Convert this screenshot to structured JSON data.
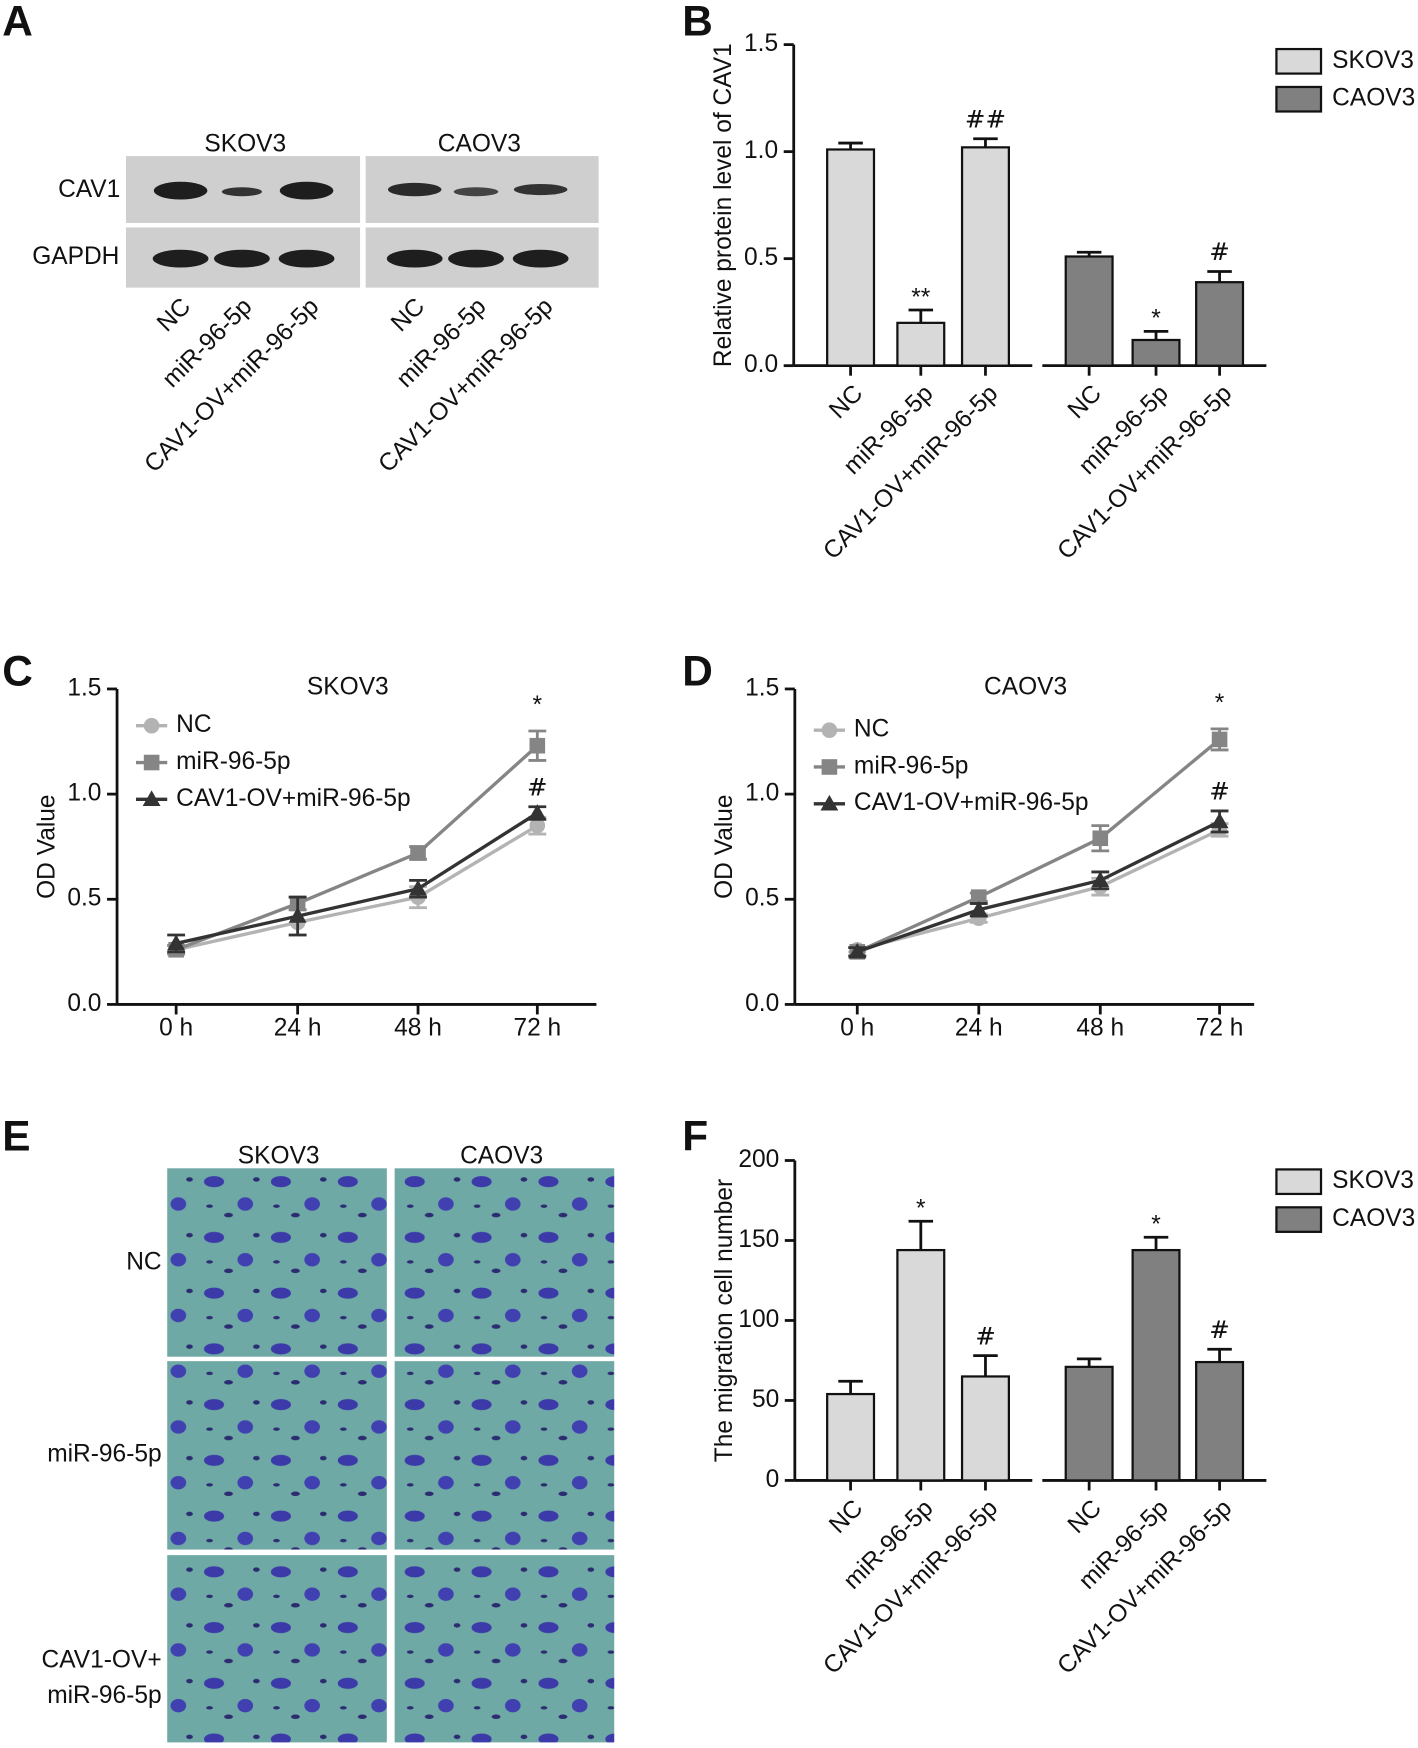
{
  "blot": {
    "panel": "A",
    "cell_lines": [
      "SKOV3",
      "CAOV3"
    ],
    "proteins": [
      "CAV1",
      "GAPDH"
    ],
    "lanes": [
      "NC",
      "miR-96-5p",
      "CAV1-OV+miR-96-5p"
    ]
  },
  "migration_images": {
    "panel": "E",
    "cell_lines": [
      "SKOV3",
      "CAOV3"
    ],
    "rows": [
      [
        "NC"
      ],
      [
        "miR-96-5p"
      ],
      [
        "CAV1-OV+",
        "miR-96-5p"
      ]
    ]
  },
  "chart_data": [
    {
      "type": "bar",
      "panel": "B",
      "ylabel": "Relative protein level of CAV1",
      "categories": [
        "NC",
        "miR-96-5p",
        "CAV1-OV+miR-96-5p"
      ],
      "ylim": [
        0,
        1.5
      ],
      "yticks": [
        {
          "value": 0,
          "label": "0.0"
        },
        0.5,
        {
          "value": 1,
          "label": "1.0"
        },
        1.5
      ],
      "legend": "right",
      "series": [
        {
          "name": "SKOV3",
          "color": "#d9d9d9",
          "values": [
            1.01,
            0.2,
            1.02
          ],
          "errors": [
            0.03,
            0.06,
            0.04
          ],
          "annotations": [
            null,
            "**",
            "##"
          ]
        },
        {
          "name": "CAOV3",
          "color": "#808080",
          "values": [
            0.51,
            0.12,
            0.39
          ],
          "errors": [
            0.02,
            0.04,
            0.05
          ],
          "annotations": [
            null,
            "*",
            "#"
          ]
        }
      ]
    },
    {
      "type": "line",
      "panel": "C",
      "title": "SKOV3",
      "ylabel": "OD Value",
      "categories": [
        "0 h",
        "24 h",
        "48 h",
        "72 h"
      ],
      "ylim": [
        0,
        1.5
      ],
      "yticks": [
        {
          "value": 0,
          "label": "0.0"
        },
        0.5,
        {
          "value": 1,
          "label": "1.0"
        },
        1.5
      ],
      "legend": "top-left",
      "series": [
        {
          "name": "NC",
          "color": "#b3b3b3",
          "marker": "circle",
          "values": [
            0.26,
            0.39,
            0.51,
            0.85
          ],
          "errors": [
            0.02,
            0.06,
            0.05,
            0.04
          ],
          "annotations": [
            null,
            null,
            null,
            null
          ]
        },
        {
          "name": "miR-96-5p",
          "color": "#858585",
          "marker": "square",
          "values": [
            0.26,
            0.48,
            0.72,
            1.23
          ],
          "errors": [
            0.02,
            0.03,
            0.03,
            0.07
          ],
          "annotations": [
            null,
            null,
            null,
            "*"
          ]
        },
        {
          "name": "CAV1-OV+miR-96-5p",
          "color": "#333333",
          "marker": "triangle",
          "values": [
            0.29,
            0.42,
            0.55,
            0.91
          ],
          "errors": [
            0.04,
            0.09,
            0.04,
            0.03
          ],
          "annotations": [
            null,
            null,
            null,
            "#"
          ]
        }
      ]
    },
    {
      "type": "line",
      "panel": "D",
      "title": "CAOV3",
      "ylabel": "OD Value",
      "categories": [
        "0 h",
        "24 h",
        "48 h",
        "72 h"
      ],
      "ylim": [
        0,
        1.5
      ],
      "yticks": [
        {
          "value": 0,
          "label": "0.0"
        },
        0.5,
        {
          "value": 1,
          "label": "1.0"
        },
        1.5
      ],
      "legend": "top-left",
      "series": [
        {
          "name": "NC",
          "color": "#b3b3b3",
          "marker": "circle",
          "values": [
            0.26,
            0.41,
            0.56,
            0.83
          ],
          "errors": [
            0.01,
            0.02,
            0.04,
            0.03
          ],
          "annotations": [
            null,
            null,
            null,
            null
          ]
        },
        {
          "name": "miR-96-5p",
          "color": "#858585",
          "marker": "square",
          "values": [
            0.25,
            0.51,
            0.79,
            1.26
          ],
          "errors": [
            0.02,
            0.02,
            0.06,
            0.05
          ],
          "annotations": [
            null,
            null,
            null,
            "*"
          ]
        },
        {
          "name": "CAV1-OV+miR-96-5p",
          "color": "#333333",
          "marker": "triangle",
          "values": [
            0.25,
            0.45,
            0.59,
            0.87
          ],
          "errors": [
            0.02,
            0.03,
            0.04,
            0.05
          ],
          "annotations": [
            null,
            null,
            null,
            "#"
          ]
        }
      ]
    },
    {
      "type": "bar",
      "panel": "F",
      "ylabel": "The migration cell number",
      "categories": [
        "NC",
        "miR-96-5p",
        "CAV1-OV+miR-96-5p"
      ],
      "ylim": [
        0,
        200
      ],
      "yticks": [
        0,
        50,
        100,
        150,
        200
      ],
      "legend": "right",
      "series": [
        {
          "name": "SKOV3",
          "color": "#d9d9d9",
          "values": [
            54,
            144,
            65
          ],
          "errors": [
            8,
            18,
            13
          ],
          "annotations": [
            null,
            "*",
            "#"
          ]
        },
        {
          "name": "CAOV3",
          "color": "#808080",
          "values": [
            71,
            144,
            74
          ],
          "errors": [
            5,
            8,
            8
          ],
          "annotations": [
            null,
            "*",
            "#"
          ]
        }
      ]
    }
  ]
}
